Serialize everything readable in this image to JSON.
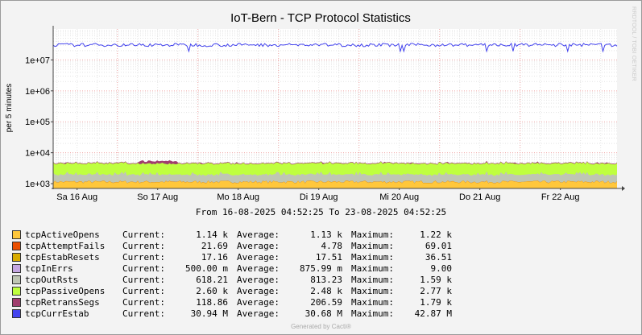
{
  "chart_data": {
    "type": "area",
    "title": "IoT-Bern - TCP Protocol Statistics",
    "ylabel": "per 5 minutes",
    "y_scale": "log",
    "ylim": [
      700,
      100000000
    ],
    "y_ticks": [
      {
        "value": 1000,
        "label": "1e+03"
      },
      {
        "value": 10000,
        "label": "1e+04"
      },
      {
        "value": 100000,
        "label": "1e+05"
      },
      {
        "value": 1000000,
        "label": "1e+06"
      },
      {
        "value": 10000000,
        "label": "1e+07"
      }
    ],
    "x_range": [
      "2025-08-16 04:52:25",
      "2025-08-23 04:52:25"
    ],
    "x_ticks": [
      {
        "date": "2025-08-16",
        "label": "Sa 16 Aug"
      },
      {
        "date": "2025-08-17",
        "label": "So 17 Aug"
      },
      {
        "date": "2025-08-18",
        "label": "Mo 18 Aug"
      },
      {
        "date": "2025-08-19",
        "label": "Di 19 Aug"
      },
      {
        "date": "2025-08-20",
        "label": "Mi 20 Aug"
      },
      {
        "date": "2025-08-21",
        "label": "Do 21 Aug"
      },
      {
        "date": "2025-08-22",
        "label": "Fr 22 Aug"
      }
    ],
    "grid": true,
    "legend_placement": "bottom",
    "series": [
      {
        "name": "tcpActiveOpens",
        "color": "#FFC73B",
        "style": "area",
        "current": "1.14 k",
        "average": "1.13 k",
        "maximum": "1.22 k",
        "level": 1130
      },
      {
        "name": "tcpAttemptFails",
        "color": "#EA4F00",
        "style": "area",
        "current": "21.69",
        "average": "4.78",
        "maximum": "69.01",
        "level": 4.78
      },
      {
        "name": "tcpEstabResets",
        "color": "#D8AC00",
        "style": "area",
        "current": "17.16",
        "average": "17.51",
        "maximum": "36.51",
        "level": 17.51
      },
      {
        "name": "tcpInErrs",
        "color": "#C4A6E1",
        "style": "area",
        "current": "500.00 m",
        "average": "875.99 m",
        "maximum": "9.00",
        "level": 0.876
      },
      {
        "name": "tcpOutRsts",
        "color": "#BFC6B4",
        "style": "area",
        "current": "618.21",
        "average": "813.23",
        "maximum": "1.59 k",
        "level": 813.23
      },
      {
        "name": "tcpPassiveOpens",
        "color": "#BFFF3F",
        "style": "area",
        "current": "2.60 k",
        "average": "2.48 k",
        "maximum": "2.77 k",
        "level": 2480
      },
      {
        "name": "tcpRetransSegs",
        "color": "#A03E6E",
        "style": "area",
        "current": "118.86",
        "average": "206.59",
        "maximum": "1.79 k",
        "level": 206.59
      },
      {
        "name": "tcpCurrEstab",
        "color": "#4444EE",
        "style": "line",
        "current": "30.94 M",
        "average": "30.68 M",
        "maximum": "42.87 M",
        "level": 30680000
      }
    ]
  },
  "range_text": "From 16-08-2025 04:52:25 To 23-08-2025 04:52:25",
  "legend_labels": {
    "current": "Current:",
    "average": "Average:",
    "maximum": "Maximum:"
  },
  "footer": "Generated by Cacti®",
  "watermark": "RRDTOOL / TOBI OETIKER"
}
